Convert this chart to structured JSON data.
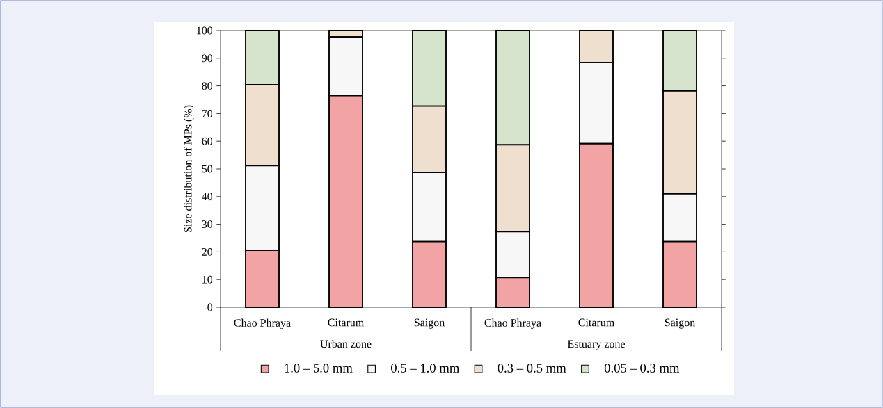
{
  "chart_data": {
    "type": "bar",
    "stacked": true,
    "ylabel": "Size distribution of MPs (%)",
    "categories": [
      "Chao Phraya",
      "Citarum",
      "Saigon",
      "Chao Phraya",
      "Citarum",
      "Saigon"
    ],
    "annotations": [
      "Urban zone",
      "Estuary zone"
    ],
    "series": [
      {
        "name": "1.0 – 5.0 mm",
        "color": "#f2a4a4",
        "values": [
          20.6,
          76.5,
          23.7,
          10.7,
          59.1,
          23.7
        ]
      },
      {
        "name": "0.5 – 1.0 mm",
        "color": "#f7f7f7",
        "values": [
          30.6,
          21.2,
          25.0,
          16.6,
          29.3,
          17.3
        ]
      },
      {
        "name": "0.3 – 0.5 mm",
        "color": "#eedfcf",
        "values": [
          29.2,
          2.3,
          24.0,
          31.4,
          11.6,
          37.2
        ]
      },
      {
        "name": "0.05 – 0.3 mm",
        "color": "#d6e4cd",
        "values": [
          19.6,
          0,
          27.3,
          41.3,
          0,
          21.8
        ]
      }
    ],
    "ylim": [
      0,
      100
    ],
    "yticks": [
      0,
      10,
      20,
      30,
      40,
      50,
      60,
      70,
      80,
      90,
      100
    ],
    "legend": "bottom"
  }
}
